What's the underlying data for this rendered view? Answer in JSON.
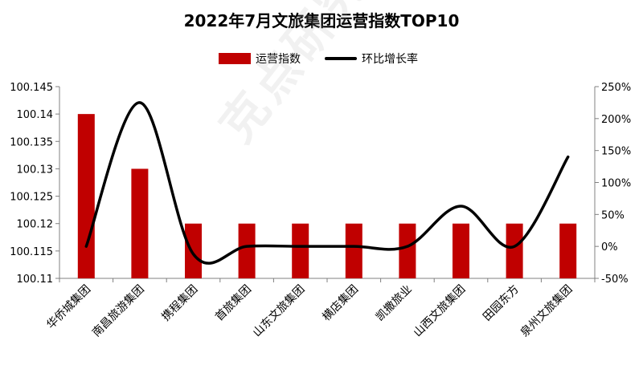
{
  "watermark": "克点研究院",
  "colors": {
    "bar": "#C00000",
    "line": "#000000",
    "axis": "#808080",
    "text": "#000000"
  },
  "chart_data": {
    "type": "bar",
    "title": "2022年7月文旅集团运营指数TOP10",
    "legend_position": "top",
    "grid": false,
    "categories": [
      "华侨城集团",
      "南昌旅游集团",
      "携程集团",
      "首旅集团",
      "山东文旅集团",
      "横店集团",
      "凯撒旅业",
      "山西文旅集团",
      "田园东方",
      "泉州文旅集团"
    ],
    "series": [
      {
        "name": "运营指数",
        "type": "bar",
        "axis": "left",
        "values": [
          100.14,
          100.13,
          100.12,
          100.12,
          100.12,
          100.12,
          100.12,
          100.12,
          100.12,
          100.12
        ]
      },
      {
        "name": "环比增长率",
        "type": "line",
        "axis": "right",
        "values": [
          0,
          225,
          -12,
          0,
          0,
          0,
          0,
          63,
          0,
          140
        ]
      }
    ],
    "y_left": {
      "min": 100.11,
      "max": 100.145,
      "ticks": [
        100.145,
        100.14,
        100.135,
        100.13,
        100.125,
        100.12,
        100.115,
        100.11
      ],
      "tick_labels": [
        "100.145",
        "100.14",
        "100.135",
        "100.13",
        "100.125",
        "100.12",
        "100.115",
        "100.11"
      ]
    },
    "y_right": {
      "min": -50,
      "max": 250,
      "ticks": [
        250,
        200,
        150,
        100,
        50,
        0,
        -50
      ],
      "tick_labels": [
        "250%",
        "200%",
        "150%",
        "100%",
        "50%",
        "0%",
        "-50%"
      ]
    }
  }
}
